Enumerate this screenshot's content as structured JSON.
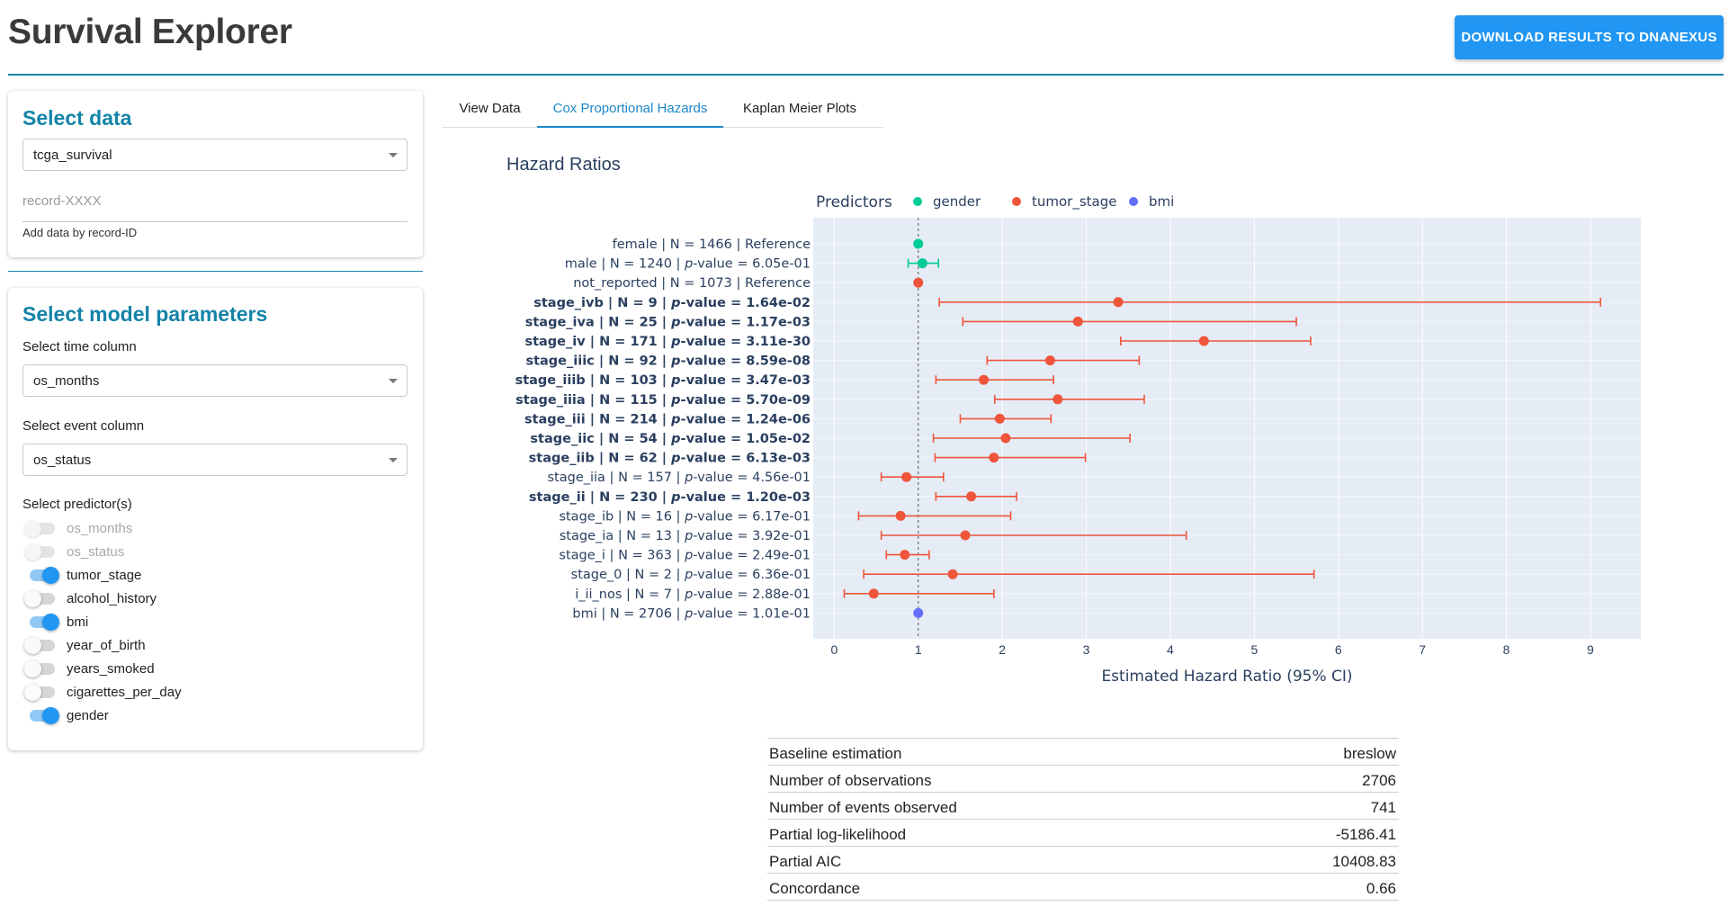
{
  "app": {
    "title": "Survival Explorer",
    "download_label": "DOWNLOAD RESULTS TO DNANEXUS"
  },
  "select_data": {
    "title": "Select data",
    "dataset": "tcga_survival",
    "record_placeholder": "record-XXXX",
    "helper": "Add data by record-ID"
  },
  "model_params": {
    "title": "Select model parameters",
    "time_label": "Select time column",
    "time_value": "os_months",
    "event_label": "Select event column",
    "event_value": "os_status",
    "predictors_label": "Select predictor(s)",
    "predictors": [
      {
        "label": "os_months",
        "on": false,
        "disabled": true
      },
      {
        "label": "os_status",
        "on": false,
        "disabled": true
      },
      {
        "label": "tumor_stage",
        "on": true,
        "disabled": false
      },
      {
        "label": "alcohol_history",
        "on": false,
        "disabled": false
      },
      {
        "label": "bmi",
        "on": true,
        "disabled": false
      },
      {
        "label": "year_of_birth",
        "on": false,
        "disabled": false
      },
      {
        "label": "years_smoked",
        "on": false,
        "disabled": false
      },
      {
        "label": "cigarettes_per_day",
        "on": false,
        "disabled": false
      },
      {
        "label": "gender",
        "on": true,
        "disabled": false
      }
    ]
  },
  "tabs": [
    {
      "label": "View Data",
      "active": false
    },
    {
      "label": "Cox Proportional Hazards",
      "active": true
    },
    {
      "label": "Kaplan Meier Plots",
      "active": false
    }
  ],
  "chart_data": {
    "type": "scatter",
    "title": "Hazard Ratios",
    "xlabel": "Estimated Hazard Ratio (95% CI)",
    "xlim": [
      -0.25,
      9.6
    ],
    "xticks": [
      0,
      1,
      2,
      3,
      4,
      5,
      6,
      7,
      8,
      9
    ],
    "reference_line": 1,
    "legend_title": "Predictors",
    "legend_position": "top",
    "grid": true,
    "series": [
      {
        "name": "gender",
        "color": "#00cc96"
      },
      {
        "name": "tumor_stage",
        "color": "#ef553b"
      },
      {
        "name": "bmi",
        "color": "#636efa"
      }
    ],
    "rows": [
      {
        "name": "female",
        "n": "N = 1466",
        "p": "Reference",
        "series": "gender",
        "hr": 1.0,
        "lo": null,
        "hi": null,
        "bold": false
      },
      {
        "name": "male",
        "n": "N = 1240",
        "p": "6.05e-01",
        "series": "gender",
        "hr": 1.05,
        "lo": 0.88,
        "hi": 1.24,
        "bold": false
      },
      {
        "name": "not_reported",
        "n": "N = 1073",
        "p": "Reference",
        "series": "tumor_stage",
        "hr": 1.0,
        "lo": null,
        "hi": null,
        "bold": false
      },
      {
        "name": "stage_ivb",
        "n": "N = 9",
        "p": "1.64e-02",
        "series": "tumor_stage",
        "hr": 3.38,
        "lo": 1.25,
        "hi": 9.12,
        "bold": true
      },
      {
        "name": "stage_iva",
        "n": "N = 25",
        "p": "1.17e-03",
        "series": "tumor_stage",
        "hr": 2.9,
        "lo": 1.53,
        "hi": 5.5,
        "bold": true
      },
      {
        "name": "stage_iv",
        "n": "N = 171",
        "p": "3.11e-30",
        "series": "tumor_stage",
        "hr": 4.4,
        "lo": 3.41,
        "hi": 5.67,
        "bold": true
      },
      {
        "name": "stage_iiic",
        "n": "N = 92",
        "p": "8.59e-08",
        "series": "tumor_stage",
        "hr": 2.57,
        "lo": 1.82,
        "hi": 3.63,
        "bold": true
      },
      {
        "name": "stage_iiib",
        "n": "N = 103",
        "p": "3.47e-03",
        "series": "tumor_stage",
        "hr": 1.78,
        "lo": 1.21,
        "hi": 2.61,
        "bold": true
      },
      {
        "name": "stage_iiia",
        "n": "N = 115",
        "p": "5.70e-09",
        "series": "tumor_stage",
        "hr": 2.66,
        "lo": 1.91,
        "hi": 3.69,
        "bold": true
      },
      {
        "name": "stage_iii",
        "n": "N = 214",
        "p": "1.24e-06",
        "series": "tumor_stage",
        "hr": 1.97,
        "lo": 1.5,
        "hi": 2.58,
        "bold": true
      },
      {
        "name": "stage_iic",
        "n": "N = 54",
        "p": "1.05e-02",
        "series": "tumor_stage",
        "hr": 2.04,
        "lo": 1.18,
        "hi": 3.52,
        "bold": true
      },
      {
        "name": "stage_iib",
        "n": "N = 62",
        "p": "6.13e-03",
        "series": "tumor_stage",
        "hr": 1.9,
        "lo": 1.2,
        "hi": 2.99,
        "bold": true
      },
      {
        "name": "stage_iia",
        "n": "N = 157",
        "p": "4.56e-01",
        "series": "tumor_stage",
        "hr": 0.86,
        "lo": 0.56,
        "hi": 1.3,
        "bold": false
      },
      {
        "name": "stage_ii",
        "n": "N = 230",
        "p": "1.20e-03",
        "series": "tumor_stage",
        "hr": 1.63,
        "lo": 1.21,
        "hi": 2.17,
        "bold": true
      },
      {
        "name": "stage_ib",
        "n": "N = 16",
        "p": "6.17e-01",
        "series": "tumor_stage",
        "hr": 0.79,
        "lo": 0.29,
        "hi": 2.1,
        "bold": false
      },
      {
        "name": "stage_ia",
        "n": "N = 13",
        "p": "3.92e-01",
        "series": "tumor_stage",
        "hr": 1.56,
        "lo": 0.56,
        "hi": 4.19,
        "bold": false
      },
      {
        "name": "stage_i",
        "n": "N = 363",
        "p": "2.49e-01",
        "series": "tumor_stage",
        "hr": 0.84,
        "lo": 0.62,
        "hi": 1.13,
        "bold": false
      },
      {
        "name": "stage_0",
        "n": "N = 2",
        "p": "6.36e-01",
        "series": "tumor_stage",
        "hr": 1.41,
        "lo": 0.35,
        "hi": 5.71,
        "bold": false
      },
      {
        "name": "i_ii_nos",
        "n": "N = 7",
        "p": "2.88e-01",
        "series": "tumor_stage",
        "hr": 0.47,
        "lo": 0.12,
        "hi": 1.9,
        "bold": false
      },
      {
        "name": "bmi",
        "n": "N = 2706",
        "p": "1.01e-01",
        "series": "bmi",
        "hr": 1.0,
        "lo": null,
        "hi": null,
        "bold": false
      }
    ]
  },
  "stats": [
    {
      "key": "Baseline estimation",
      "value": "breslow"
    },
    {
      "key": "Number of observations",
      "value": "2706"
    },
    {
      "key": "Number of events observed",
      "value": "741"
    },
    {
      "key": "Partial log-likelihood",
      "value": "-5186.41"
    },
    {
      "key": "Partial AIC",
      "value": "10408.83"
    },
    {
      "key": "Concordance",
      "value": "0.66"
    }
  ]
}
